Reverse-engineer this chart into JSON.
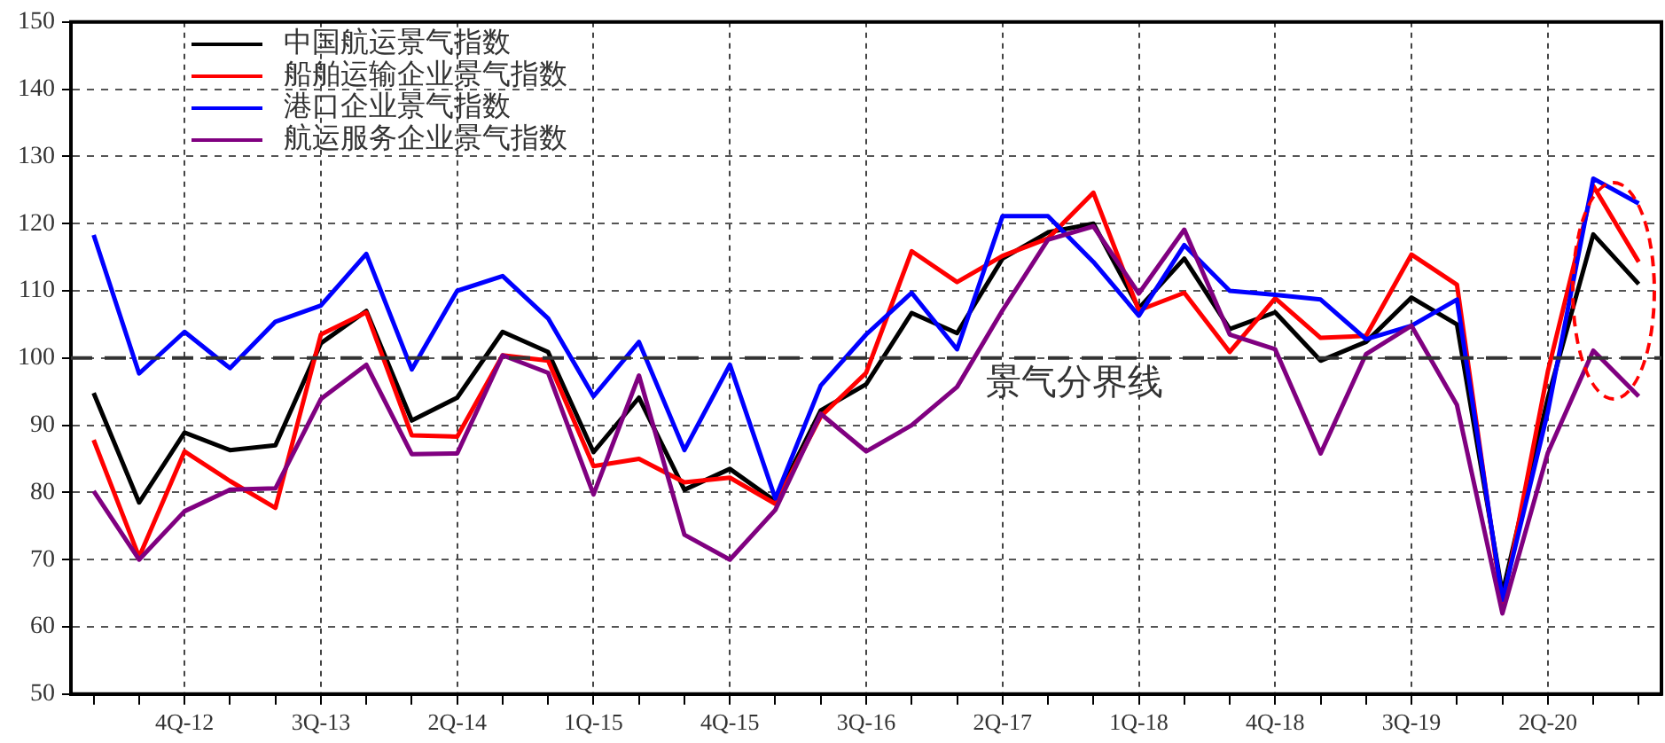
{
  "chart_data": {
    "type": "line",
    "categories": [
      null,
      null,
      "4Q-12",
      null,
      null,
      "3Q-13",
      null,
      null,
      "2Q-14",
      null,
      null,
      "1Q-15",
      null,
      null,
      "4Q-15",
      null,
      null,
      "3Q-16",
      null,
      null,
      "2Q-17",
      null,
      null,
      "1Q-18",
      null,
      null,
      "4Q-18",
      null,
      null,
      "3Q-19",
      null,
      null,
      "2Q-20",
      null,
      null
    ],
    "series": [
      {
        "name": "中国航运景气指数",
        "color": "#000000",
        "values": [
          94.8,
          78.5,
          88.9,
          86.3,
          87,
          102.2,
          107,
          90.7,
          94.1,
          103.9,
          100.9,
          86,
          94.1,
          80.4,
          83.5,
          78.7,
          92.2,
          96.1,
          106.7,
          103.7,
          114.8,
          118.7,
          120,
          107.4,
          114.8,
          104.3,
          106.8,
          99.6,
          102.4,
          109,
          105,
          65,
          94,
          118.4,
          111
        ]
      },
      {
        "name": "船舶运输企业景气指数",
        "color": "#ff0000",
        "values": [
          87.8,
          70.4,
          86.1,
          81.7,
          77.7,
          103.5,
          106.8,
          88.5,
          88.3,
          100.4,
          99.6,
          83.9,
          85,
          81.5,
          82.2,
          78.3,
          91.3,
          97.8,
          115.9,
          111.3,
          115.2,
          117.8,
          124.6,
          107.1,
          109.7,
          100.9,
          108.9,
          103,
          103.3,
          115.4,
          110.9,
          63,
          98,
          125.6,
          114.3
        ]
      },
      {
        "name": "港口企业景气指数",
        "color": "#0000ff",
        "values": [
          118.3,
          97.7,
          103.9,
          98.5,
          105.4,
          107.8,
          115.5,
          98.3,
          110,
          112.2,
          105.9,
          94.3,
          102.4,
          86.3,
          99,
          79.1,
          95.9,
          103.5,
          109.7,
          101.3,
          121.1,
          121.1,
          114.3,
          106.3,
          116.8,
          110,
          109.4,
          108.7,
          102.8,
          104.8,
          108.7,
          64,
          92,
          126.7,
          123
        ]
      },
      {
        "name": "航运服务企业景气指数",
        "color": "#800080",
        "values": [
          80.2,
          70,
          77.2,
          80.4,
          80.6,
          93.9,
          99,
          85.7,
          85.8,
          100.4,
          97.8,
          79.7,
          97.4,
          73.7,
          70,
          77.4,
          91.7,
          86.1,
          90,
          95.7,
          107.1,
          117.6,
          119.6,
          109.6,
          119.1,
          103.5,
          101.3,
          85.8,
          100.6,
          104.8,
          93,
          62,
          85.9,
          101.1,
          94.3
        ]
      }
    ],
    "ylim": [
      50,
      150
    ],
    "yticks": [
      50,
      60,
      70,
      80,
      90,
      100,
      110,
      120,
      130,
      140,
      150
    ],
    "ref_lines": [
      {
        "axis": "y",
        "value": 100,
        "label": "景气分界线",
        "color": "#333333",
        "line_style": "dashed"
      }
    ],
    "grid": true,
    "legend": "top left",
    "marker": "none",
    "line_style": "solid"
  }
}
